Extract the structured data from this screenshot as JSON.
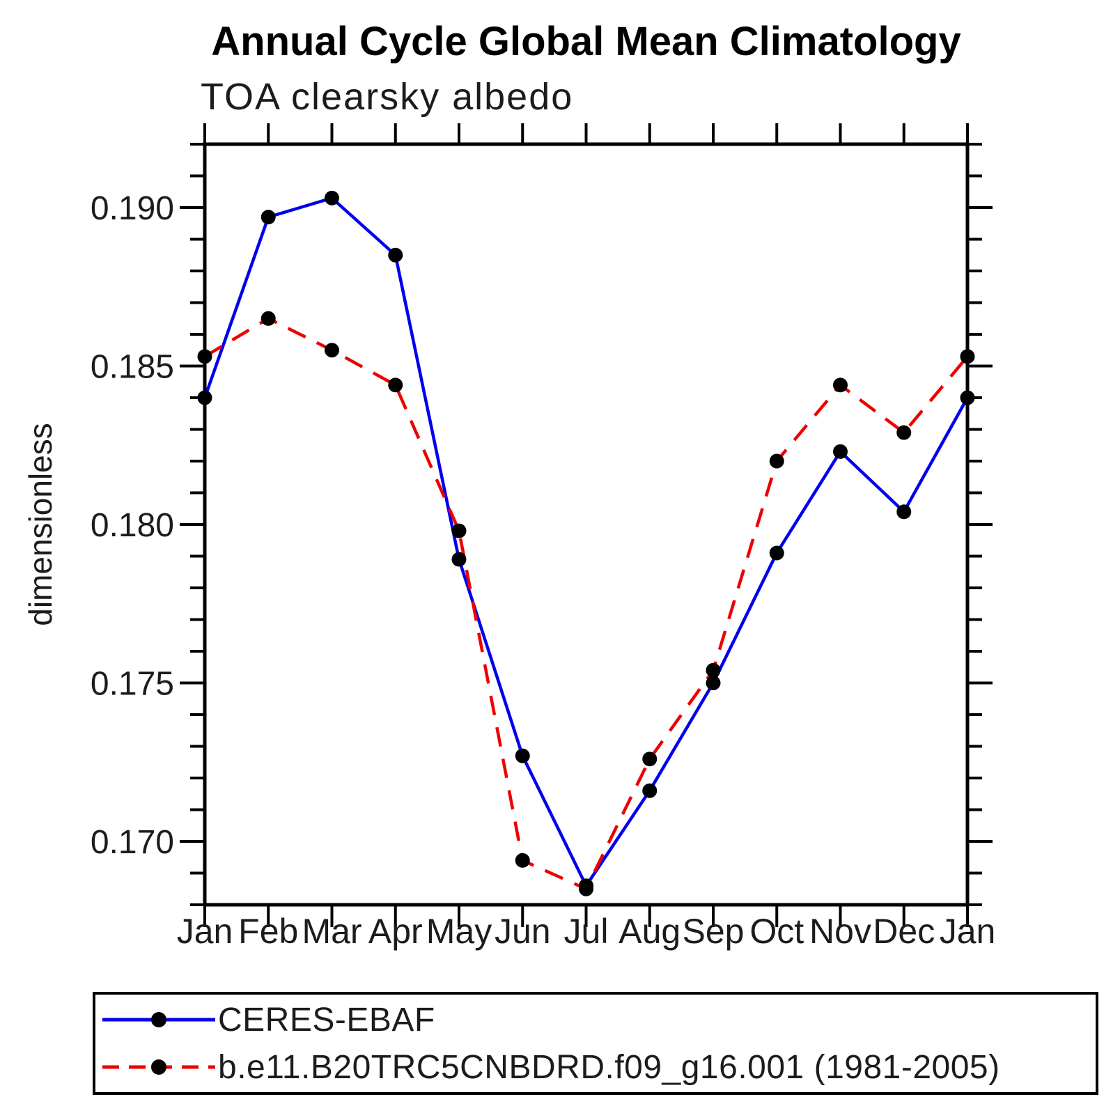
{
  "title": "Annual Cycle Global Mean Climatology",
  "subtitle": "TOA clearsky albedo",
  "legend": {
    "items": [
      {
        "label": "CERES-EBAF",
        "marker": "black-dot"
      },
      {
        "label": "b.e11.B20TRC5CNBDRD.f09_g16.001 (1981-2005)",
        "marker": "black-dot"
      }
    ]
  },
  "chart_data": {
    "type": "line",
    "title": "Annual Cycle Global Mean Climatology",
    "subtitle": "TOA clearsky albedo",
    "categories": [
      "Jan",
      "Feb",
      "Mar",
      "Apr",
      "May",
      "Jun",
      "Jul",
      "Aug",
      "Sep",
      "Oct",
      "Nov",
      "Dec",
      "Jan"
    ],
    "series": [
      {
        "name": "CERES-EBAF",
        "color": "#0000ee",
        "dash": "solid",
        "values": [
          0.184,
          0.1897,
          0.1903,
          0.1885,
          0.1789,
          0.1727,
          0.1686,
          0.1716,
          0.175,
          0.1791,
          0.1823,
          0.1804,
          0.184
        ]
      },
      {
        "name": "b.e11.B20TRC5CNBDRD.f09_g16.001 (1981-2005)",
        "color": "#ee0000",
        "dash": "dashed",
        "values": [
          0.1853,
          0.1865,
          0.1855,
          0.1844,
          0.1798,
          0.1694,
          0.1685,
          0.1726,
          0.1754,
          0.182,
          0.1844,
          0.1829,
          0.1853
        ]
      }
    ],
    "xlabel": "",
    "ylabel": "dimensionless",
    "ylim": [
      0.168,
      0.192
    ],
    "y_major_ticks": [
      0.17,
      0.175,
      0.18,
      0.185,
      0.19
    ],
    "y_minor_step": 0.001,
    "marker_color": "#000000",
    "grid": false,
    "legend_position": "bottom"
  }
}
